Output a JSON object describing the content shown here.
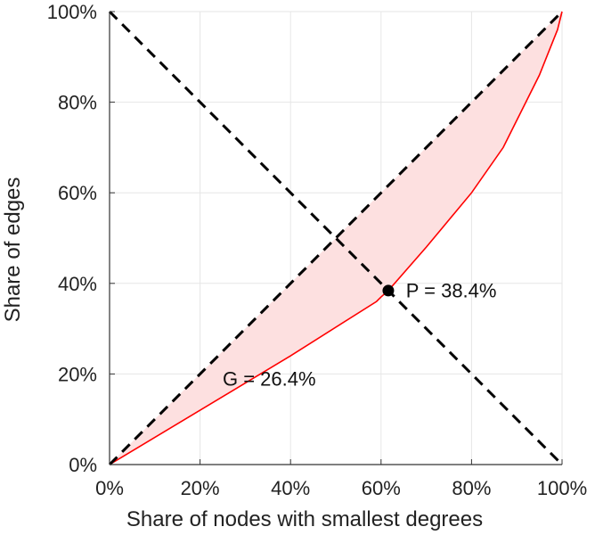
{
  "chart_data": {
    "type": "line",
    "title": "",
    "xlabel": "Share of nodes with smallest degrees",
    "ylabel": "Share of edges",
    "xlim": [
      0,
      1
    ],
    "ylim": [
      0,
      1
    ],
    "x_ticks": [
      0,
      0.2,
      0.4,
      0.6,
      0.8,
      1.0
    ],
    "x_tick_labels": [
      "0%",
      "20%",
      "40%",
      "60%",
      "80%",
      "100%"
    ],
    "y_ticks": [
      0,
      0.2,
      0.4,
      0.6,
      0.8,
      1.0
    ],
    "y_tick_labels": [
      "0%",
      "20%",
      "40%",
      "60%",
      "80%",
      "100%"
    ],
    "grid": true,
    "series": [
      {
        "kind": "lorenz-curve",
        "color": "#ff0000",
        "fill_color": "#fde0e0",
        "x": [
          0,
          0.2,
          0.4,
          0.59,
          0.6,
          0.616,
          0.7,
          0.8,
          0.87,
          0.9,
          0.95,
          0.97,
          0.99,
          1.0
        ],
        "y": [
          0,
          0.12,
          0.24,
          0.36,
          0.37,
          0.384,
          0.48,
          0.6,
          0.7,
          0.76,
          0.86,
          0.91,
          0.96,
          1.0
        ]
      },
      {
        "kind": "equality-diagonal",
        "color": "#000000",
        "dashed": true,
        "x": [
          0,
          1
        ],
        "y": [
          0,
          1
        ]
      },
      {
        "kind": "anti-diagonal",
        "color": "#000000",
        "dashed": true,
        "x": [
          0,
          1
        ],
        "y": [
          1,
          0
        ]
      }
    ],
    "marker": {
      "x": 0.616,
      "y": 0.384,
      "color": "#000000"
    },
    "annotations": [
      {
        "text": "G = 26.4%",
        "x": 0.25,
        "y": 0.19
      },
      {
        "text": "P = 38.4%",
        "x": 0.655,
        "y": 0.385
      }
    ]
  }
}
